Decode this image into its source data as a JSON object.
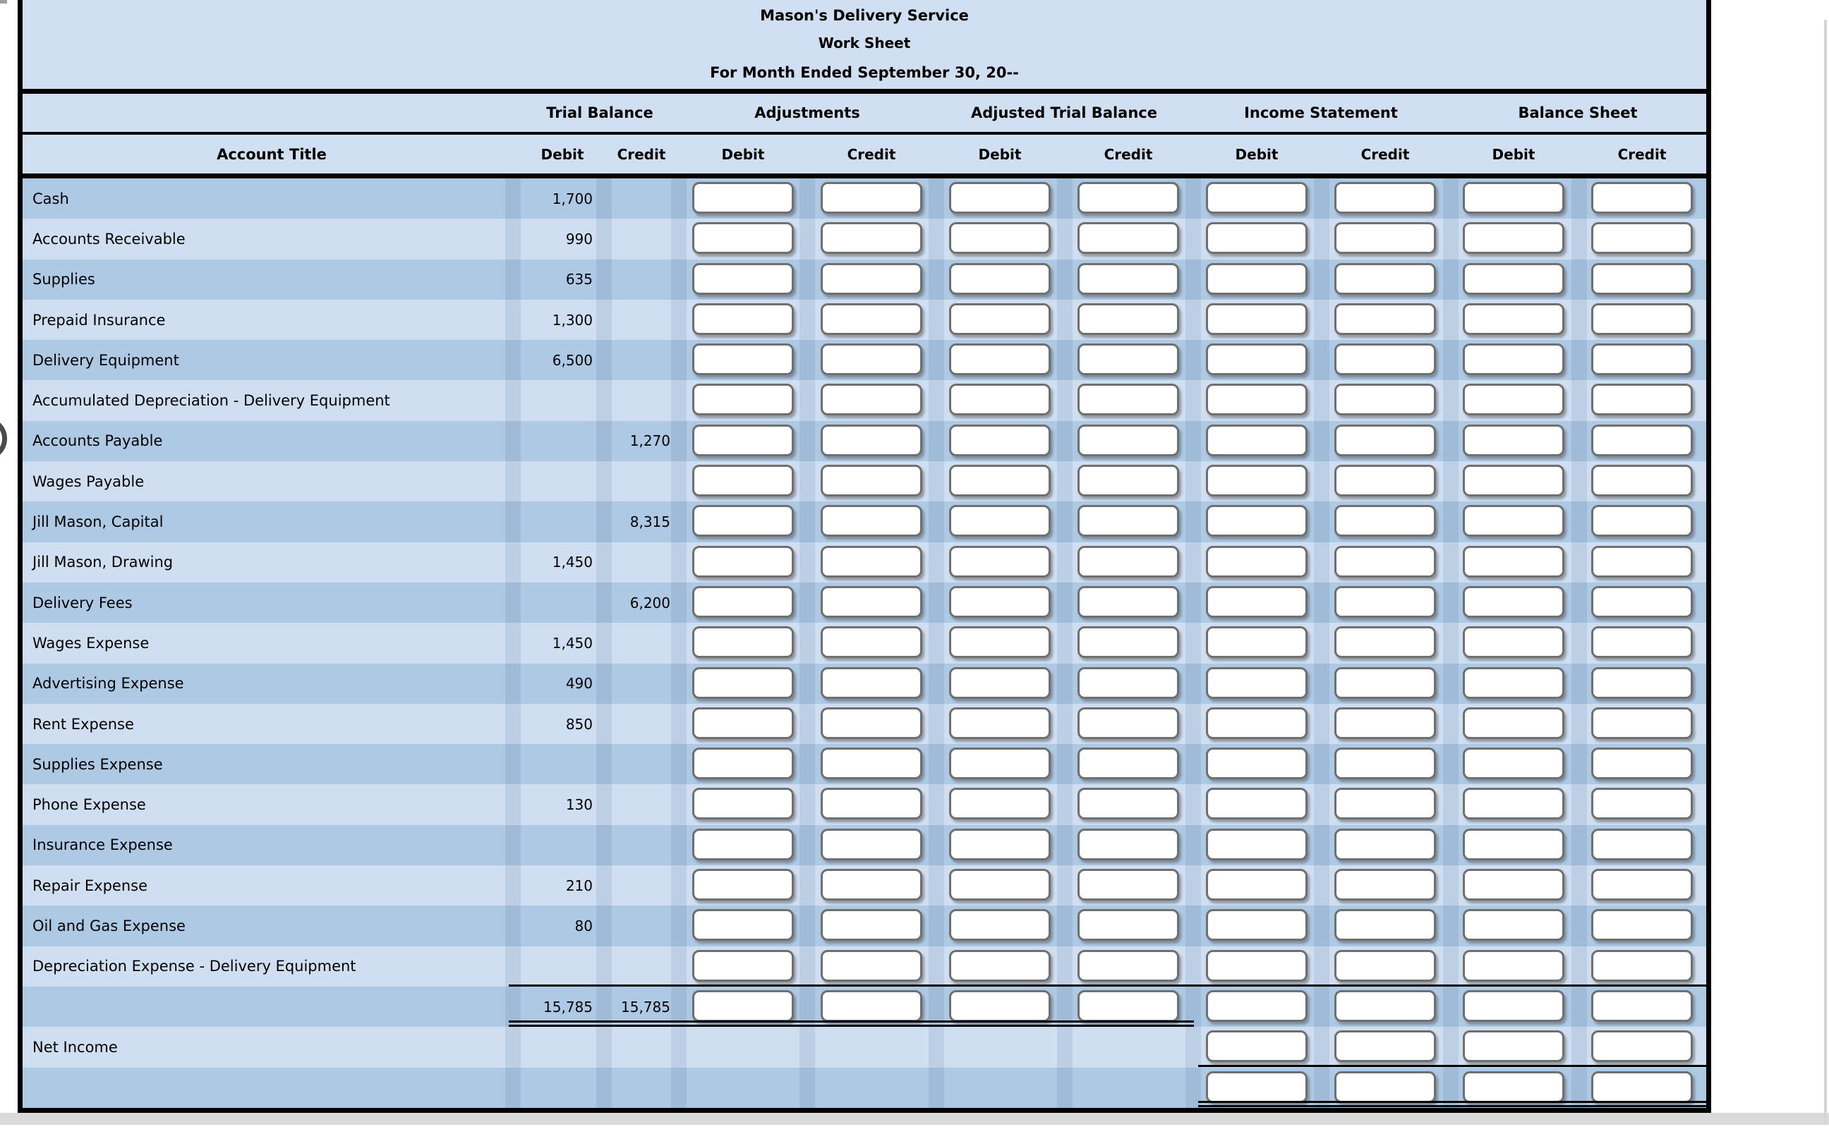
{
  "title": {
    "company": "Mason's Delivery Service",
    "report": "Work Sheet",
    "period": "For Month Ended September 30, 20--"
  },
  "headers": {
    "account_title": "Account Title",
    "groups": [
      "Trial Balance",
      "Adjustments",
      "Adjusted Trial Balance",
      "Income Statement",
      "Balance Sheet"
    ],
    "sub_columns": [
      {
        "key": "trial-balance-debit",
        "label": "Debit"
      },
      {
        "key": "trial-balance-credit",
        "label": "Credit"
      },
      {
        "key": "adjustments-debit",
        "label": "Debit"
      },
      {
        "key": "adjustments-credit",
        "label": "Credit"
      },
      {
        "key": "adjusted-trial-balance-debit",
        "label": "Debit"
      },
      {
        "key": "adjusted-trial-balance-credit",
        "label": "Credit"
      },
      {
        "key": "income-statement-debit",
        "label": "Debit"
      },
      {
        "key": "income-statement-credit",
        "label": "Credit"
      },
      {
        "key": "balance-sheet-debit",
        "label": "Debit"
      },
      {
        "key": "balance-sheet-credit",
        "label": "Credit"
      }
    ]
  },
  "rows": [
    {
      "account": "Cash",
      "tb_debit": "1,700",
      "tb_credit": ""
    },
    {
      "account": "Accounts Receivable",
      "tb_debit": "990",
      "tb_credit": ""
    },
    {
      "account": "Supplies",
      "tb_debit": "635",
      "tb_credit": ""
    },
    {
      "account": "Prepaid Insurance",
      "tb_debit": "1,300",
      "tb_credit": ""
    },
    {
      "account": "Delivery Equipment",
      "tb_debit": "6,500",
      "tb_credit": ""
    },
    {
      "account": "Accumulated Depreciation - Delivery Equipment",
      "tb_debit": "",
      "tb_credit": ""
    },
    {
      "account": "Accounts Payable",
      "tb_debit": "",
      "tb_credit": "1,270"
    },
    {
      "account": "Wages Payable",
      "tb_debit": "",
      "tb_credit": ""
    },
    {
      "account": "Jill Mason, Capital",
      "tb_debit": "",
      "tb_credit": "8,315"
    },
    {
      "account": "Jill Mason, Drawing",
      "tb_debit": "1,450",
      "tb_credit": ""
    },
    {
      "account": "Delivery Fees",
      "tb_debit": "",
      "tb_credit": "6,200"
    },
    {
      "account": "Wages Expense",
      "tb_debit": "1,450",
      "tb_credit": ""
    },
    {
      "account": "Advertising Expense",
      "tb_debit": "490",
      "tb_credit": ""
    },
    {
      "account": "Rent Expense",
      "tb_debit": "850",
      "tb_credit": ""
    },
    {
      "account": "Supplies Expense",
      "tb_debit": "",
      "tb_credit": ""
    },
    {
      "account": "Phone Expense",
      "tb_debit": "130",
      "tb_credit": ""
    },
    {
      "account": "Insurance Expense",
      "tb_debit": "",
      "tb_credit": ""
    },
    {
      "account": "Repair Expense",
      "tb_debit": "210",
      "tb_credit": ""
    },
    {
      "account": "Oil and Gas Expense",
      "tb_debit": "80",
      "tb_credit": ""
    },
    {
      "account": "Depreciation Expense - Delivery Equipment",
      "tb_debit": "",
      "tb_credit": ""
    }
  ],
  "totals_row": {
    "tb_debit": "15,785",
    "tb_credit": "15,785"
  },
  "net_income_row": {
    "label": "Net Income"
  },
  "input_value": "",
  "colors": {
    "row_dark": "#aec9e4",
    "row_light": "#cfdff1",
    "header_bg": "#d0e0f2",
    "rule": "#000000",
    "box_border": "#6f6f6f",
    "page_bg": "#ffffff"
  }
}
